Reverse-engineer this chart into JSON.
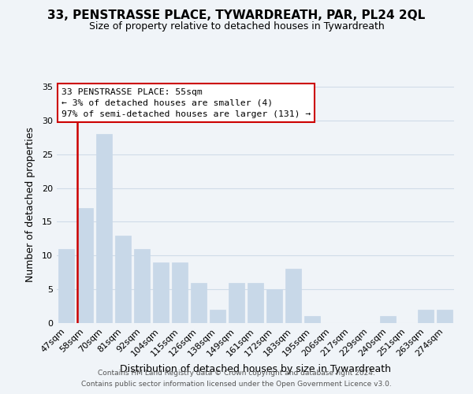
{
  "title": "33, PENSTRASSE PLACE, TYWARDREATH, PAR, PL24 2QL",
  "subtitle": "Size of property relative to detached houses in Tywardreath",
  "xlabel": "Distribution of detached houses by size in Tywardreath",
  "ylabel": "Number of detached properties",
  "footer_line1": "Contains HM Land Registry data © Crown copyright and database right 2024.",
  "footer_line2": "Contains public sector information licensed under the Open Government Licence v3.0.",
  "bar_labels": [
    "47sqm",
    "58sqm",
    "70sqm",
    "81sqm",
    "92sqm",
    "104sqm",
    "115sqm",
    "126sqm",
    "138sqm",
    "149sqm",
    "161sqm",
    "172sqm",
    "183sqm",
    "195sqm",
    "206sqm",
    "217sqm",
    "229sqm",
    "240sqm",
    "251sqm",
    "263sqm",
    "274sqm"
  ],
  "bar_values": [
    11,
    17,
    28,
    13,
    11,
    9,
    9,
    6,
    2,
    6,
    6,
    5,
    8,
    1,
    0,
    0,
    0,
    1,
    0,
    2,
    2
  ],
  "bar_color": "#c8d8e8",
  "highlight_bar_index": 1,
  "highlight_color": "#cc0000",
  "ylim": [
    0,
    35
  ],
  "yticks": [
    0,
    5,
    10,
    15,
    20,
    25,
    30,
    35
  ],
  "annotation_title": "33 PENSTRASSE PLACE: 55sqm",
  "annotation_line1": "← 3% of detached houses are smaller (4)",
  "annotation_line2": "97% of semi-detached houses are larger (131) →",
  "annotation_box_color": "#ffffff",
  "annotation_border_color": "#cc0000",
  "grid_color": "#d0dce8",
  "background_color": "#f0f4f8",
  "title_fontsize": 11,
  "subtitle_fontsize": 9
}
